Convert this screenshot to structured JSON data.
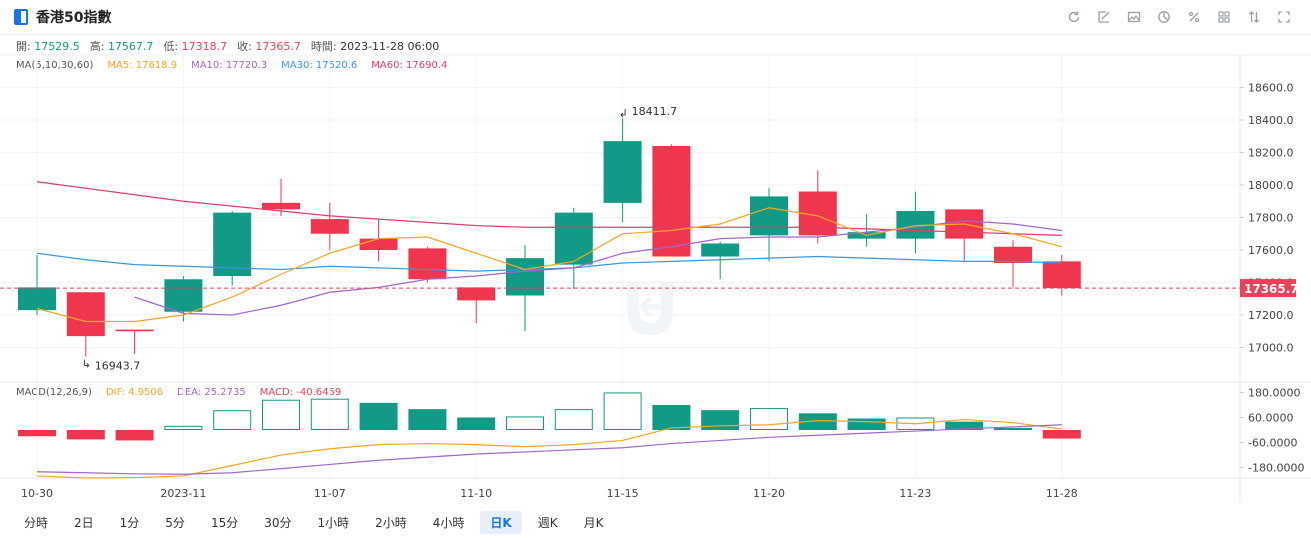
{
  "header": {
    "title": "香港50指數",
    "tools": [
      "refresh-icon",
      "draw-icon",
      "image-icon",
      "pie-icon",
      "percent-icon",
      "grid-icon",
      "sort-icon",
      "expand-icon"
    ]
  },
  "ohlc": {
    "open_label": "開:",
    "open": "17529.5",
    "high_label": "高:",
    "high": "17567.7",
    "low_label": "低:",
    "low": "17318.7",
    "close_label": "收:",
    "close": "17365.7",
    "time_label": "時間:",
    "time": "2023-11-28 06:00"
  },
  "ma_legend": {
    "name": "MA(5,10,30,60)",
    "ma5": "MA5: 17618.9",
    "ma10": "MA10: 17720.3",
    "ma30": "MA30: 17520.6",
    "ma60": "MA60: 17690.4"
  },
  "macd_legend": {
    "name": "MACD(12,26,9)",
    "dif": "DIF: 4.9506",
    "dea": "DEA: 25.2735",
    "macd": "MACD: -40.6459"
  },
  "colors": {
    "up": "#129a86",
    "down": "#f0364f",
    "ma5": "#f5a623",
    "ma10": "#a167c9",
    "ma30": "#3a97e0",
    "ma60": "#e03e6b",
    "dif": "#f5a623",
    "dea": "#a167c9"
  },
  "tabs": [
    "分時",
    "2日",
    "1分",
    "5分",
    "15分",
    "30分",
    "1小時",
    "2小時",
    "4小時",
    "日K",
    "週K",
    "月K"
  ],
  "active_tab": "日K",
  "chart_data": {
    "type": "candlestick",
    "x_labels": [
      "10-30",
      "2023-11",
      "11-07",
      "11-10",
      "11-15",
      "11-20",
      "11-23",
      "11-28"
    ],
    "y_ticks": [
      "18600.0",
      "18400.0",
      "18200.0",
      "18000.0",
      "17800.0",
      "17600.0",
      "17400.0",
      "17200.0",
      "17000.0"
    ],
    "y_range": [
      16800,
      18800
    ],
    "last_price": "17365.7",
    "max_label": "18411.7",
    "min_label": "16943.7",
    "candles": [
      {
        "o": 17230,
        "h": 17570,
        "l": 17200,
        "c": 17370
      },
      {
        "o": 17340,
        "h": 17340,
        "l": 16944,
        "c": 17070
      },
      {
        "o": 17110,
        "h": 17110,
        "l": 16960,
        "c": 17100
      },
      {
        "o": 17220,
        "h": 17440,
        "l": 17160,
        "c": 17420
      },
      {
        "o": 17440,
        "h": 17840,
        "l": 17380,
        "c": 17830
      },
      {
        "o": 17890,
        "h": 18040,
        "l": 17810,
        "c": 17850
      },
      {
        "o": 17790,
        "h": 17890,
        "l": 17600,
        "c": 17700
      },
      {
        "o": 17670,
        "h": 17790,
        "l": 17530,
        "c": 17600
      },
      {
        "o": 17610,
        "h": 17620,
        "l": 17400,
        "c": 17420
      },
      {
        "o": 17370,
        "h": 17370,
        "l": 17150,
        "c": 17290
      },
      {
        "o": 17320,
        "h": 17630,
        "l": 17100,
        "c": 17550
      },
      {
        "o": 17510,
        "h": 17860,
        "l": 17360,
        "c": 17830
      },
      {
        "o": 17890,
        "h": 18412,
        "l": 17770,
        "c": 18270
      },
      {
        "o": 18240,
        "h": 18250,
        "l": 17560,
        "c": 17560
      },
      {
        "o": 17560,
        "h": 17650,
        "l": 17420,
        "c": 17640
      },
      {
        "o": 17690,
        "h": 17980,
        "l": 17530,
        "c": 17930
      },
      {
        "o": 17960,
        "h": 18090,
        "l": 17640,
        "c": 17690
      },
      {
        "o": 17670,
        "h": 17820,
        "l": 17620,
        "c": 17710
      },
      {
        "o": 17670,
        "h": 17960,
        "l": 17580,
        "c": 17840
      },
      {
        "o": 17850,
        "h": 17850,
        "l": 17530,
        "c": 17670
      },
      {
        "o": 17620,
        "h": 17660,
        "l": 17370,
        "c": 17520
      },
      {
        "o": 17530,
        "h": 17570,
        "l": 17320,
        "c": 17366
      }
    ],
    "ma5": [
      17240,
      17160,
      17160,
      17200,
      17310,
      17450,
      17580,
      17670,
      17680,
      17580,
      17480,
      17530,
      17700,
      17720,
      17760,
      17860,
      17810,
      17690,
      17750,
      17760,
      17700,
      17620
    ],
    "ma10": [
      null,
      null,
      17310,
      17210,
      17200,
      17260,
      17340,
      17370,
      17420,
      17440,
      17470,
      17490,
      17580,
      17620,
      17670,
      17680,
      17680,
      17710,
      17740,
      17780,
      17760,
      17720
    ],
    "ma30": [
      17580,
      17540,
      17510,
      17500,
      17490,
      17480,
      17500,
      17490,
      17480,
      17470,
      17480,
      17490,
      17520,
      17530,
      17540,
      17550,
      17560,
      17550,
      17540,
      17530,
      17530,
      17520
    ],
    "ma60": [
      18020,
      17980,
      17940,
      17900,
      17870,
      17840,
      17810,
      17790,
      17770,
      17750,
      17740,
      17740,
      17740,
      17740,
      17740,
      17740,
      17740,
      17730,
      17720,
      17710,
      17700,
      17690
    ],
    "macd_ticks": [
      "180.0000",
      "60.0000",
      "-60.0000",
      "-180.0000"
    ],
    "macd_range": [
      -230,
      230
    ],
    "macd_hist": [
      -30,
      -45,
      -50,
      20,
      95,
      145,
      150,
      130,
      100,
      60,
      65,
      100,
      180,
      120,
      95,
      105,
      80,
      55,
      60,
      40,
      10,
      -41
    ],
    "dif": [
      -220,
      -230,
      -228,
      -220,
      -170,
      -120,
      -90,
      -70,
      -65,
      -70,
      -80,
      -70,
      -50,
      10,
      20,
      25,
      45,
      40,
      30,
      50,
      35,
      5
    ],
    "dea": [
      -200,
      -205,
      -210,
      -212,
      -205,
      -185,
      -165,
      -145,
      -130,
      -115,
      -105,
      -95,
      -85,
      -65,
      -50,
      -35,
      -25,
      -15,
      -5,
      5,
      15,
      25
    ]
  }
}
